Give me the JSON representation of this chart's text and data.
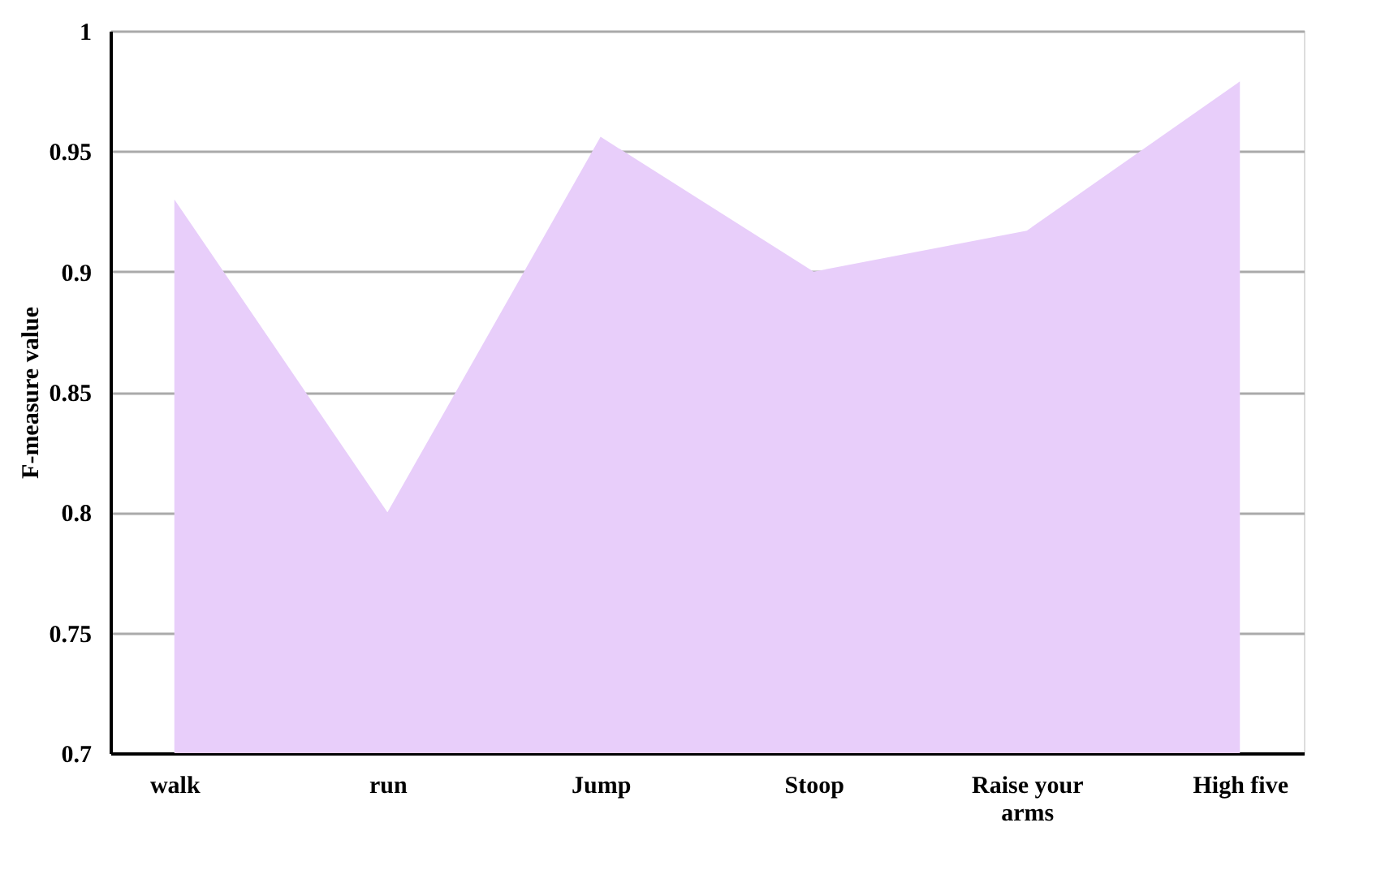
{
  "chart_data": {
    "type": "area",
    "ylabel": "F-measure value",
    "categories": [
      "walk",
      "run",
      "Jump",
      "Stoop",
      "Raise your arms",
      "High five"
    ],
    "series": [
      {
        "color": "#e8cefa",
        "values": [
          0.93,
          0.8,
          0.956,
          0.9,
          0.917,
          0.979
        ]
      }
    ],
    "ylim": [
      0.7,
      1
    ],
    "yticks": [
      0.7,
      0.75,
      0.8,
      0.85,
      0.9,
      0.95,
      1
    ],
    "grid": "y"
  }
}
